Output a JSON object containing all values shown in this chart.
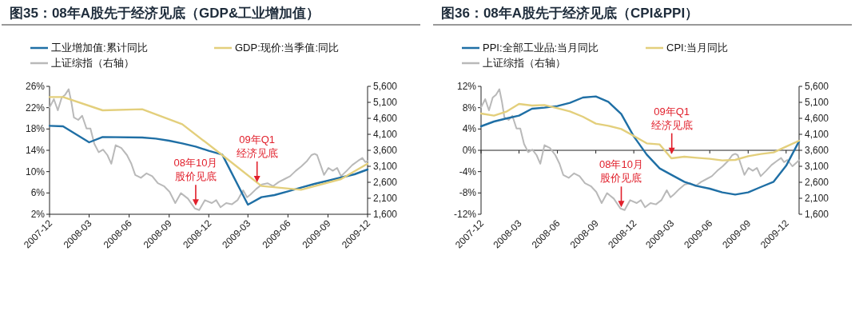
{
  "chart_data": [
    {
      "type": "line",
      "title": "图35：08年A股先于经济见底（GDP&工业增加值）",
      "legend": "top",
      "xlim": [
        "2007-12",
        "2009-12"
      ],
      "xticks": [
        "2007-12",
        "2008-03",
        "2008-06",
        "2008-09",
        "2008-12",
        "2009-03",
        "2009-06",
        "2009-09",
        "2009-12"
      ],
      "ylim": [
        2,
        26
      ],
      "yticks": [
        {
          "value": 2,
          "label": "2%"
        },
        {
          "value": 6,
          "label": "6%"
        },
        {
          "value": 10,
          "label": "10%"
        },
        {
          "value": 14,
          "label": "14%"
        },
        {
          "value": 18,
          "label": "18%"
        },
        {
          "value": 22,
          "label": "22%"
        },
        {
          "value": 26,
          "label": "26%"
        }
      ],
      "y2lim": [
        1600,
        5600
      ],
      "y2ticks": [
        {
          "value": 1600,
          "label": "1,600"
        },
        {
          "value": 2100,
          "label": "2,100"
        },
        {
          "value": 2600,
          "label": "2,600"
        },
        {
          "value": 3100,
          "label": "3,100"
        },
        {
          "value": 3600,
          "label": "3,600"
        },
        {
          "value": 4100,
          "label": "4,100"
        },
        {
          "value": 4600,
          "label": "4,600"
        },
        {
          "value": 5100,
          "label": "5,100"
        },
        {
          "value": 5600,
          "label": "5,600"
        }
      ],
      "series": [
        {
          "name": "工业增加值:累计同比",
          "color": "#1f6fa5",
          "x": [
            "2007-12",
            "2008-01",
            "2008-03",
            "2008-04",
            "2008-07",
            "2008-08",
            "2008-09",
            "2008-10",
            "2008-11",
            "2008-12",
            "2009-01",
            "2009-03",
            "2009-04",
            "2009-05",
            "2009-06",
            "2009-07",
            "2009-08",
            "2009-09",
            "2009-10",
            "2009-11",
            "2009-12"
          ],
          "values": [
            18.6,
            18.5,
            15.5,
            16.5,
            16.4,
            16.2,
            15.8,
            15.3,
            14.7,
            13.9,
            13.2,
            3.8,
            5.2,
            5.6,
            6.3,
            7.0,
            7.7,
            8.3,
            8.9,
            9.5,
            10.4
          ]
        },
        {
          "name": "GDP:现价:当季值:同比",
          "color": "#e3cf7c",
          "x": [
            "2007-12",
            "2008-01",
            "2008-04",
            "2008-07",
            "2008-10",
            "2009-01",
            "2009-04",
            "2009-07",
            "2009-10",
            "2009-12"
          ],
          "values": [
            24.0,
            24.0,
            21.5,
            21.7,
            18.9,
            13.1,
            7.3,
            6.6,
            8.6,
            11.5
          ]
        },
        {
          "name": "上证综指（右轴）",
          "color": "#b9b9b9",
          "axis": "y2",
          "x": [
            "2007-12-01",
            "2007-12-11",
            "2007-12-20",
            "2007-12-29",
            "2008-01-06",
            "2008-01-14",
            "2008-01-20",
            "2008-01-26",
            "2008-02-05",
            "2008-02-14",
            "2008-02-24",
            "2008-03-04",
            "2008-03-13",
            "2008-03-23",
            "2008-04-02",
            "2008-04-12",
            "2008-04-21",
            "2008-05-01",
            "2008-05-14",
            "2008-05-27",
            "2008-06-06",
            "2008-06-15",
            "2008-06-28",
            "2008-07-11",
            "2008-07-24",
            "2008-08-06",
            "2008-08-20",
            "2008-09-02",
            "2008-09-15",
            "2008-09-28",
            "2008-10-14",
            "2008-10-30",
            "2008-11-09",
            "2008-11-22",
            "2008-12-08",
            "2008-12-18",
            "2008-12-28",
            "2009-01-10",
            "2009-01-23",
            "2009-02-05",
            "2009-02-18",
            "2009-02-27",
            "2009-03-07",
            "2009-03-20",
            "2009-04-02",
            "2009-04-15",
            "2009-04-28",
            "2009-05-11",
            "2009-05-24",
            "2009-06-06",
            "2009-06-19",
            "2009-07-02",
            "2009-07-15",
            "2009-07-25",
            "2009-08-01",
            "2009-08-07",
            "2009-08-14",
            "2009-08-23",
            "2009-09-02",
            "2009-09-12",
            "2009-09-22",
            "2009-10-01",
            "2009-10-14",
            "2009-10-27",
            "2009-11-09",
            "2009-11-19",
            "2009-11-26",
            "2009-12-01"
          ],
          "values": [
            4940,
            5200,
            4850,
            5250,
            5340,
            5510,
            5120,
            4630,
            4550,
            4680,
            4280,
            4280,
            3800,
            3540,
            3620,
            3450,
            3180,
            3760,
            3670,
            3450,
            3180,
            2830,
            2740,
            2880,
            2790,
            2570,
            2480,
            2300,
            1950,
            2260,
            2090,
            1780,
            1730,
            2040,
            1950,
            2040,
            1820,
            1950,
            1910,
            2040,
            2350,
            2130,
            2220,
            2390,
            2530,
            2570,
            2480,
            2610,
            2700,
            2790,
            2960,
            3100,
            3270,
            3450,
            3490,
            3450,
            3180,
            2830,
            3050,
            2960,
            3050,
            2790,
            2960,
            3140,
            3270,
            3360,
            3230,
            3270
          ]
        }
      ],
      "annotations": [
        {
          "text": "08年10月股价见底",
          "x": "2008-11-01",
          "y": 3.6
        },
        {
          "text": "09年Q1经济见底",
          "x": "2009-03-22",
          "y": 8
        }
      ]
    },
    {
      "type": "line",
      "title": "图36：08年A股先于经济见底（CPI&PPI）",
      "legend": "top",
      "xlim": [
        "2007-12",
        "2010-01"
      ],
      "xticks": [
        "2007-12",
        "2008-03",
        "2008-06",
        "2008-09",
        "2008-12",
        "2009-03",
        "2009-06",
        "2009-09",
        "2009-12"
      ],
      "ylim": [
        -12,
        12
      ],
      "yticks": [
        {
          "value": -12,
          "label": "-12%"
        },
        {
          "value": -8,
          "label": "-8%"
        },
        {
          "value": -4,
          "label": "-4%"
        },
        {
          "value": 0,
          "label": "0%"
        },
        {
          "value": 4,
          "label": "4%"
        },
        {
          "value": 8,
          "label": "8%"
        },
        {
          "value": 12,
          "label": "12%"
        }
      ],
      "y2lim": [
        1600,
        5600
      ],
      "y2ticks": [
        {
          "value": 1600,
          "label": "1,600"
        },
        {
          "value": 2100,
          "label": "2,100"
        },
        {
          "value": 2600,
          "label": "2,600"
        },
        {
          "value": 3100,
          "label": "3,100"
        },
        {
          "value": 3600,
          "label": "3,600"
        },
        {
          "value": 4100,
          "label": "4,100"
        },
        {
          "value": 4600,
          "label": "4,600"
        },
        {
          "value": 5100,
          "label": "5,100"
        },
        {
          "value": 5600,
          "label": "5,600"
        }
      ],
      "series": [
        {
          "name": "PPI:全部工业品:当月同比",
          "color": "#1f6fa5",
          "x": [
            "2007-12",
            "2008-01",
            "2008-02",
            "2008-03",
            "2008-04",
            "2008-05",
            "2008-06",
            "2008-07",
            "2008-08",
            "2008-09",
            "2008-10",
            "2008-11",
            "2008-12",
            "2009-01",
            "2009-02",
            "2009-03",
            "2009-04",
            "2009-05",
            "2009-06",
            "2009-07",
            "2009-08",
            "2009-09",
            "2009-10",
            "2009-11",
            "2009-12",
            "2010-01"
          ],
          "values": [
            4.5,
            5.4,
            6.0,
            6.5,
            7.8,
            8.0,
            8.3,
            8.9,
            9.9,
            10.1,
            9.1,
            6.8,
            2.6,
            -0.8,
            -3.4,
            -4.6,
            -5.9,
            -6.7,
            -7.2,
            -7.9,
            -8.3,
            -7.9,
            -6.9,
            -5.9,
            -2.9,
            1.7
          ]
        },
        {
          "name": "CPI:当月同比",
          "color": "#e3cf7c",
          "x": [
            "2007-12",
            "2008-01",
            "2008-02",
            "2008-03",
            "2008-04",
            "2008-05",
            "2008-06",
            "2008-07",
            "2008-08",
            "2008-09",
            "2008-10",
            "2008-11",
            "2008-12",
            "2009-01",
            "2009-02",
            "2009-03",
            "2009-04",
            "2009-05",
            "2009-06",
            "2009-07",
            "2009-08",
            "2009-09",
            "2009-10",
            "2009-11",
            "2009-12",
            "2010-01"
          ],
          "values": [
            6.9,
            6.5,
            7.3,
            8.7,
            8.4,
            8.5,
            7.9,
            7.3,
            6.3,
            5.0,
            4.6,
            4.0,
            2.7,
            1.3,
            1.1,
            -1.5,
            -1.2,
            -1.4,
            -1.6,
            -1.9,
            -1.8,
            -1.1,
            -0.7,
            -0.4,
            0.7,
            1.8
          ]
        },
        {
          "name": "上证综指（右轴）",
          "color": "#b9b9b9",
          "axis": "y2",
          "x": [
            "2007-12-01",
            "2007-12-11",
            "2007-12-20",
            "2007-12-29",
            "2008-01-06",
            "2008-01-14",
            "2008-01-20",
            "2008-01-26",
            "2008-02-05",
            "2008-02-14",
            "2008-02-24",
            "2008-03-04",
            "2008-03-13",
            "2008-03-23",
            "2008-04-02",
            "2008-04-12",
            "2008-04-21",
            "2008-05-01",
            "2008-05-14",
            "2008-05-27",
            "2008-06-06",
            "2008-06-15",
            "2008-06-28",
            "2008-07-11",
            "2008-07-24",
            "2008-08-06",
            "2008-08-20",
            "2008-09-02",
            "2008-09-15",
            "2008-09-28",
            "2008-10-14",
            "2008-10-30",
            "2008-11-09",
            "2008-11-22",
            "2008-12-08",
            "2008-12-18",
            "2008-12-28",
            "2009-01-10",
            "2009-01-23",
            "2009-02-05",
            "2009-02-18",
            "2009-02-27",
            "2009-03-07",
            "2009-03-20",
            "2009-04-02",
            "2009-04-15",
            "2009-04-28",
            "2009-05-11",
            "2009-05-24",
            "2009-06-06",
            "2009-06-19",
            "2009-07-02",
            "2009-07-15",
            "2009-07-25",
            "2009-08-01",
            "2009-08-07",
            "2009-08-14",
            "2009-08-23",
            "2009-09-02",
            "2009-09-12",
            "2009-09-22",
            "2009-10-01",
            "2009-10-14",
            "2009-10-27",
            "2009-11-09",
            "2009-11-19",
            "2009-11-26",
            "2009-12-04",
            "2009-12-16",
            "2010-01-01"
          ],
          "values": [
            4940,
            5200,
            4850,
            5250,
            5340,
            5510,
            5120,
            4630,
            4550,
            4680,
            4280,
            4280,
            3800,
            3540,
            3620,
            3450,
            3180,
            3760,
            3670,
            3450,
            3180,
            2830,
            2740,
            2880,
            2790,
            2570,
            2480,
            2300,
            1950,
            2260,
            2090,
            1780,
            1730,
            2040,
            1950,
            2040,
            1820,
            1950,
            1910,
            2040,
            2350,
            2130,
            2220,
            2390,
            2530,
            2570,
            2480,
            2610,
            2700,
            2790,
            2960,
            3100,
            3270,
            3450,
            3490,
            3450,
            3180,
            2830,
            3050,
            2960,
            3050,
            2790,
            2960,
            3140,
            3270,
            3360,
            3230,
            3300,
            3100,
            3290
          ]
        }
      ],
      "annotations": [
        {
          "text": "08年10月股价见底",
          "x": "2008-11-01",
          "y": -10.7
        },
        {
          "text": "09年Q1经济见底",
          "x": "2009-03-02",
          "y": -0.7
        }
      ]
    }
  ]
}
